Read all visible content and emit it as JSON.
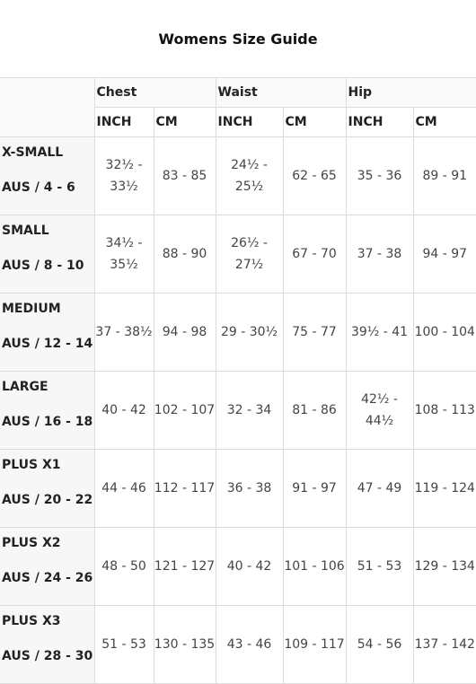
{
  "title": "Womens Size Guide",
  "groups": [
    "Chest",
    "Waist",
    "Hip"
  ],
  "units": [
    "INCH",
    "CM",
    "INCH",
    "CM",
    "INCH",
    "CM"
  ],
  "rows": [
    {
      "size": "X-SMALL",
      "aus": "AUS / 4 - 6",
      "values": [
        "32½ - 33½",
        "83 - 85",
        "24½ - 25½",
        "62 - 65",
        "35 - 36",
        "89 - 91"
      ]
    },
    {
      "size": "SMALL",
      "aus": "AUS / 8 - 10",
      "values": [
        "34½ - 35½",
        "88 - 90",
        "26½ - 27½",
        "67 - 70",
        "37 - 38",
        "94 - 97"
      ]
    },
    {
      "size": "MEDIUM",
      "aus": "AUS / 12 - 14",
      "values": [
        "37 - 38½",
        "94 - 98",
        "29 - 30½",
        "75 - 77",
        "39½ - 41",
        "100 - 104"
      ]
    },
    {
      "size": "LARGE",
      "aus": "AUS / 16 - 18",
      "values": [
        "40 - 42",
        "102 - 107",
        "32 - 34",
        "81 - 86",
        "42½ - 44½",
        "108 - 113"
      ]
    },
    {
      "size": "PLUS X1",
      "aus": "AUS / 20 - 22",
      "values": [
        "44 - 46",
        "112 - 117",
        "36 - 38",
        "91 - 97",
        "47 - 49",
        "119 - 124"
      ]
    },
    {
      "size": "PLUS X2",
      "aus": "AUS / 24 - 26",
      "values": [
        "48 - 50",
        "121 - 127",
        "40 - 42",
        "101 - 106",
        "51 - 53",
        "129 - 134"
      ]
    },
    {
      "size": "PLUS X3",
      "aus": "AUS / 28 - 30",
      "values": [
        "51 - 53",
        "130 - 135",
        "43 - 46",
        "109 - 117",
        "54 - 56",
        "137 - 142"
      ]
    }
  ]
}
